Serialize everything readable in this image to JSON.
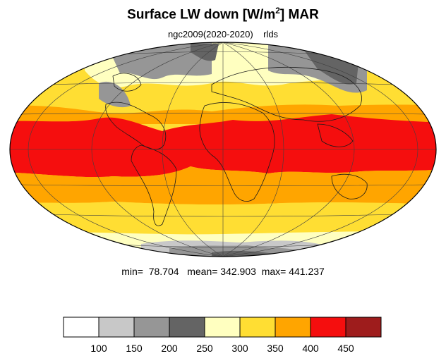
{
  "title": {
    "prefix": "Surface LW down [W/m",
    "sup": "2",
    "suffix": "]  MAR"
  },
  "subtitle": {
    "run": "ngc2009(2020-2020)",
    "variable": "rlds"
  },
  "stats": {
    "min_label": "min=",
    "min": "78.704",
    "mean_label": "mean=",
    "mean": "342.903",
    "max_label": "max=",
    "max": "441.237"
  },
  "colorbar": {
    "labels": [
      "100",
      "150",
      "200",
      "250",
      "300",
      "350",
      "400",
      "450"
    ],
    "colors": [
      "#ffffff",
      "#c8c8c8",
      "#969696",
      "#646464",
      "#ffffc0",
      "#ffde33",
      "#ffa500",
      "#f50e0e",
      "#9e1c1c"
    ]
  },
  "map": {
    "projection": "mollweide",
    "band_colors": {
      "ice_low": "#969696",
      "ice_mid": "#646464",
      "ice_bright": "#c8c8c8",
      "pale": "#ffffc0",
      "light": "#ffde33",
      "mid": "#ffa500",
      "tropical": "#f50e0e"
    }
  }
}
